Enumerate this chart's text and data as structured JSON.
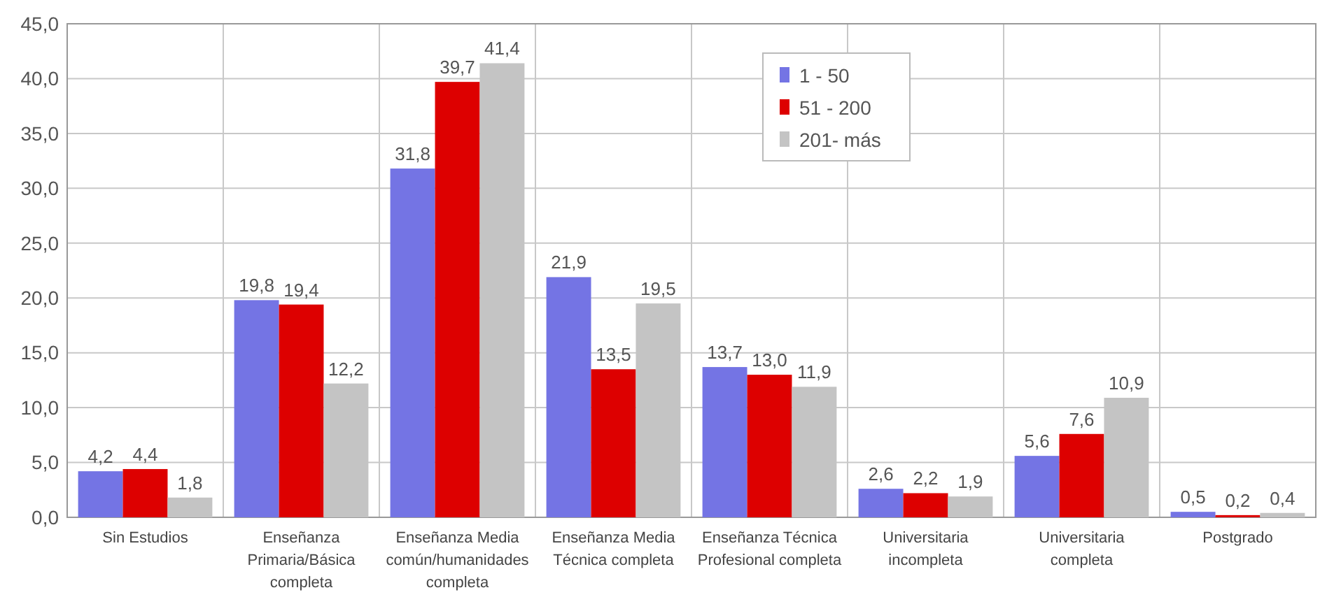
{
  "chart_data": {
    "type": "bar",
    "categories": [
      "Sin Estudios",
      "Enseñanza\nPrimaria/Básica\ncompleta",
      "Enseñanza Media\ncomún/humanidades\ncompleta",
      "Enseñanza Media\nTécnica completa",
      "Enseñanza Técnica\nProfesional completa",
      "Universitaria\nincompleta",
      "Universitaria\ncompleta",
      "Postgrado"
    ],
    "series": [
      {
        "name": "1 - 50",
        "color": "#7474e4",
        "values": [
          4.2,
          19.8,
          31.8,
          21.9,
          13.7,
          2.6,
          5.6,
          0.5
        ],
        "value_labels": [
          "4,2",
          "19,8",
          "31,8",
          "21,9",
          "13,7",
          "2,6",
          "5,6",
          "0,5"
        ]
      },
      {
        "name": "51 - 200",
        "color": "#dd0000",
        "values": [
          4.4,
          19.4,
          39.7,
          13.5,
          13.0,
          2.2,
          7.6,
          0.2
        ],
        "value_labels": [
          "4,4",
          "19,4",
          "39,7",
          "13,5",
          "13,0",
          "2,2",
          "7,6",
          "0,2"
        ]
      },
      {
        "name": "201- más",
        "color": "#c4c4c4",
        "values": [
          1.8,
          12.2,
          41.4,
          19.5,
          11.9,
          1.9,
          10.9,
          0.4
        ],
        "value_labels": [
          "1,8",
          "12,2",
          "41,4",
          "19,5",
          "11,9",
          "1,9",
          "10,9",
          "0,4"
        ]
      }
    ],
    "ylim": [
      0,
      45
    ],
    "yticks": [
      {
        "value": 0,
        "label": "0,0"
      },
      {
        "value": 5,
        "label": "5,0"
      },
      {
        "value": 10,
        "label": "10,0"
      },
      {
        "value": 15,
        "label": "15,0"
      },
      {
        "value": 20,
        "label": "20,0"
      },
      {
        "value": 25,
        "label": "25,0"
      },
      {
        "value": 30,
        "label": "30,0"
      },
      {
        "value": 35,
        "label": "35,0"
      },
      {
        "value": 40,
        "label": "40,0"
      },
      {
        "value": 45,
        "label": "45,0"
      }
    ],
    "grid": true,
    "legend": "top"
  }
}
